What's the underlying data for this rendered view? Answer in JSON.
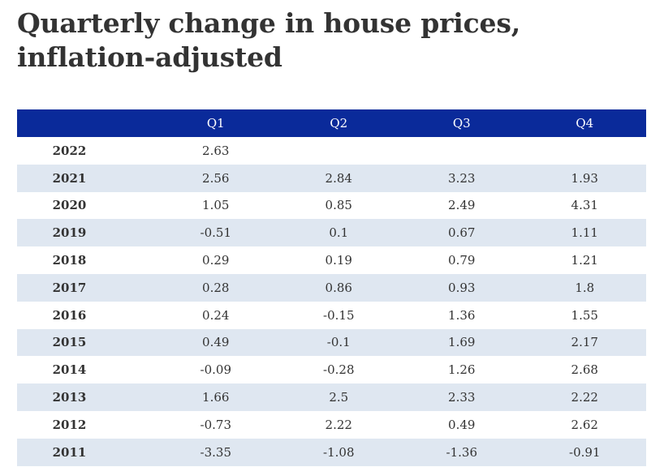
{
  "title": "Quarterly change in house prices, inflation-adjusted",
  "colors": {
    "header_bg": "#0a2a9a",
    "header_text": "#ffffff",
    "stripe": "#dfe7f1",
    "text": "#333333"
  },
  "chart_data": {
    "type": "table",
    "title": "Quarterly change in house prices, inflation-adjusted",
    "columns": [
      "",
      "Q1",
      "Q2",
      "Q3",
      "Q4"
    ],
    "rows": [
      {
        "year": "2022",
        "values": [
          "2.63",
          "",
          "",
          ""
        ]
      },
      {
        "year": "2021",
        "values": [
          "2.56",
          "2.84",
          "3.23",
          "1.93"
        ]
      },
      {
        "year": "2020",
        "values": [
          "1.05",
          "0.85",
          "2.49",
          "4.31"
        ]
      },
      {
        "year": "2019",
        "values": [
          "-0.51",
          "0.1",
          "0.67",
          "1.11"
        ]
      },
      {
        "year": "2018",
        "values": [
          "0.29",
          "0.19",
          "0.79",
          "1.21"
        ]
      },
      {
        "year": "2017",
        "values": [
          "0.28",
          "0.86",
          "0.93",
          "1.8"
        ]
      },
      {
        "year": "2016",
        "values": [
          "0.24",
          "-0.15",
          "1.36",
          "1.55"
        ]
      },
      {
        "year": "2015",
        "values": [
          "0.49",
          "-0.1",
          "1.69",
          "2.17"
        ]
      },
      {
        "year": "2014",
        "values": [
          "-0.09",
          "-0.28",
          "1.26",
          "2.68"
        ]
      },
      {
        "year": "2013",
        "values": [
          "1.66",
          "2.5",
          "2.33",
          "2.22"
        ]
      },
      {
        "year": "2012",
        "values": [
          "-0.73",
          "2.22",
          "0.49",
          "2.62"
        ]
      },
      {
        "year": "2011",
        "values": [
          "-3.35",
          "-1.08",
          "-1.36",
          "-0.91"
        ]
      }
    ]
  }
}
